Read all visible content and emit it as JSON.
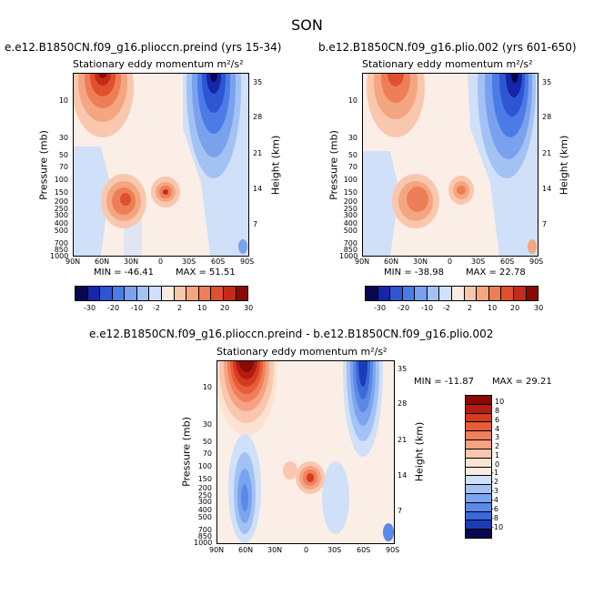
{
  "suptitle": "SON",
  "colors": {
    "horizontal": [
      "#08084e",
      "#1526a6",
      "#2f56d2",
      "#4a7be6",
      "#79a1ee",
      "#a3c2f4",
      "#cfe0f8",
      "#f9ebe0",
      "#f7c7ac",
      "#f3a67f",
      "#ee7e57",
      "#e1502e",
      "#c12b18",
      "#8a0a06"
    ],
    "vertical": [
      "#8a0a06",
      "#b51b10",
      "#d63a1f",
      "#e65d3a",
      "#f07f5c",
      "#f5a384",
      "#f9c7ae",
      "#fce2d3",
      "#f9ebe0",
      "#cfe0f8",
      "#a3c2f4",
      "#7ca3ef",
      "#5a89e6",
      "#3a6ad9",
      "#1b3cb7",
      "#08084e"
    ]
  },
  "chart_data": [
    {
      "type": "contour",
      "title": "e.e12.B1850CN.f09_g16.plioccn.preind (yrs 15-34)",
      "subtitle": "Stationary eddy momentum  m²/s²",
      "xlabel": "",
      "ylabel": "Pressure (mb)",
      "ylabel_right": "Height (km)",
      "xticks": [
        "90N",
        "60N",
        "30N",
        "0",
        "30S",
        "60S",
        "90S"
      ],
      "yticks": [
        "10",
        "30",
        "50",
        "70",
        "100",
        "150",
        "200",
        "250",
        "300",
        "400",
        "500",
        "700",
        "850",
        "1000"
      ],
      "yticks_right": [
        "35",
        "28",
        "21",
        "14",
        "7"
      ],
      "min_label": "MIN = -46.41",
      "max_label": "MAX =  51.51",
      "min": -46.41,
      "max": 51.51
    },
    {
      "type": "contour",
      "title": "b.e12.B1850CN.f09_g16.plio.002 (yrs 601-650)",
      "subtitle": "Stationary eddy momentum  m²/s²",
      "xlabel": "",
      "ylabel": "Pressure (mb)",
      "ylabel_right": "Height (km)",
      "xticks": [
        "90N",
        "60N",
        "30N",
        "0",
        "30S",
        "60S",
        "90S"
      ],
      "yticks": [
        "10",
        "30",
        "50",
        "70",
        "100",
        "150",
        "200",
        "250",
        "300",
        "400",
        "500",
        "700",
        "850",
        "1000"
      ],
      "yticks_right": [
        "35",
        "28",
        "21",
        "14",
        "7"
      ],
      "min_label": "MIN = -38.98",
      "max_label": "MAX =  22.78",
      "min": -38.98,
      "max": 22.78
    },
    {
      "type": "contour",
      "title": "e.e12.B1850CN.f09_g16.plioccn.preind - b.e12.B1850CN.f09_g16.plio.002",
      "subtitle": "Stationary eddy momentum  m²/s²",
      "xlabel": "",
      "ylabel": "Pressure (mb)",
      "ylabel_right": "Height (km)",
      "xticks": [
        "90N",
        "60N",
        "30N",
        "0",
        "30S",
        "60S",
        "90S"
      ],
      "yticks": [
        "10",
        "30",
        "50",
        "70",
        "100",
        "150",
        "200",
        "250",
        "300",
        "400",
        "500",
        "700",
        "850",
        "1000"
      ],
      "yticks_right": [
        "35",
        "28",
        "21",
        "14",
        "7"
      ],
      "min_label": "MIN = -11.87",
      "max_label": "MAX =  29.21",
      "min": -11.87,
      "max": 29.21
    }
  ],
  "colorbar_top": {
    "labels": [
      "-30",
      "-20",
      "-10",
      "-2",
      "2",
      "10",
      "20",
      "30"
    ]
  },
  "colorbar_bottom": {
    "labels": [
      "10",
      "8",
      "6",
      "4",
      "3",
      "2",
      "1",
      "0",
      "-1",
      "-2",
      "-3",
      "-4",
      "-6",
      "-8",
      "-10"
    ]
  }
}
